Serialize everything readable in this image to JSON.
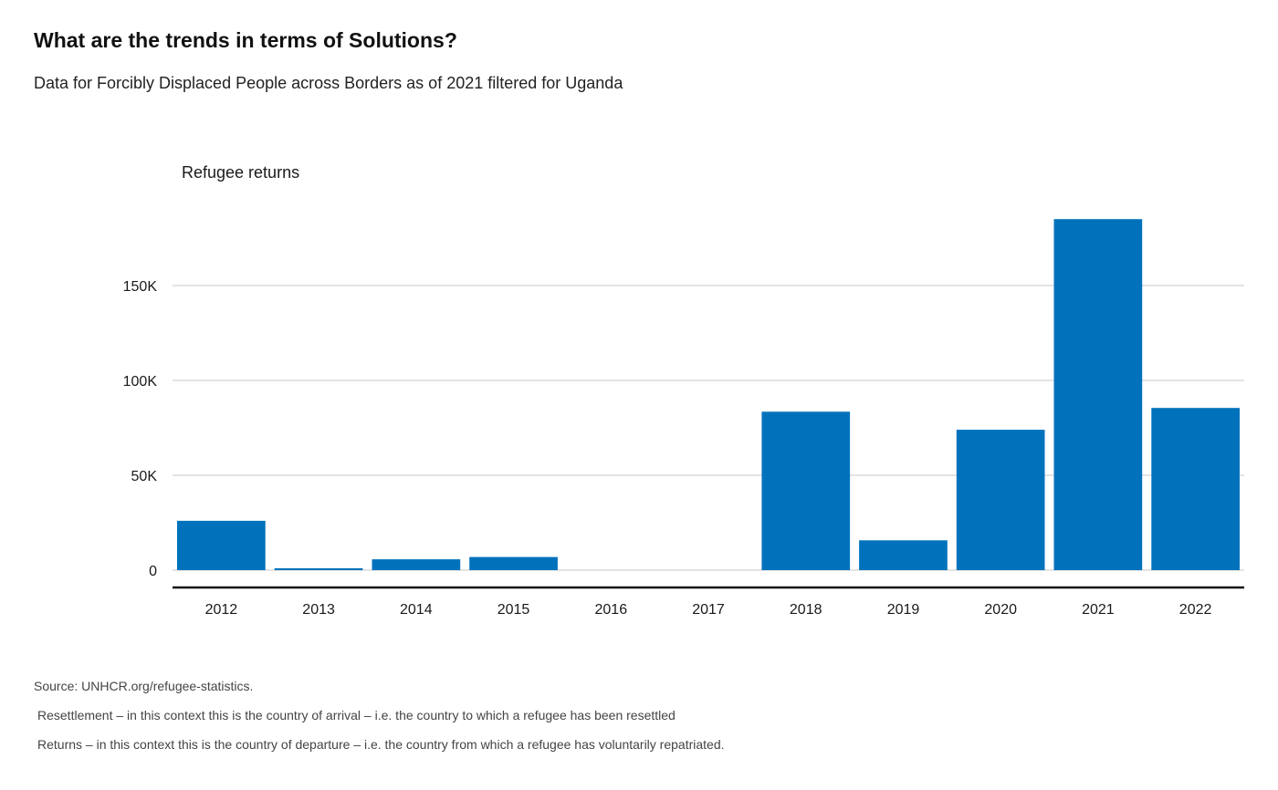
{
  "header": {
    "title": "What are the trends in terms of Solutions?",
    "subtitle": "Data for Forcibly Displaced People across Borders as of 2021 filtered for Uganda"
  },
  "chart_data": {
    "type": "bar",
    "ylabel": "Refugee returns",
    "categories": [
      "2012",
      "2013",
      "2014",
      "2015",
      "2016",
      "2017",
      "2018",
      "2019",
      "2020",
      "2021",
      "2022"
    ],
    "values": [
      26000,
      1000,
      5700,
      6900,
      0,
      0,
      83500,
      15700,
      74000,
      185000,
      85500
    ],
    "ylim": [
      0,
      185000
    ],
    "yticks": [
      {
        "value": 0,
        "label": "0"
      },
      {
        "value": 50000,
        "label": "50K"
      },
      {
        "value": 100000,
        "label": "100K"
      },
      {
        "value": 150000,
        "label": "150K"
      }
    ],
    "bar_color": "#0072bc",
    "grid": true
  },
  "footer": {
    "source": "Source: UNHCR.org/refugee-statistics.",
    "note_resettlement": "Resettlement – in this context this is the country of arrival – i.e. the country to which a refugee has been resettled",
    "note_returns": "Returns – in this context this is the country of departure – i.e. the country from which a refugee has voluntarily repatriated."
  }
}
